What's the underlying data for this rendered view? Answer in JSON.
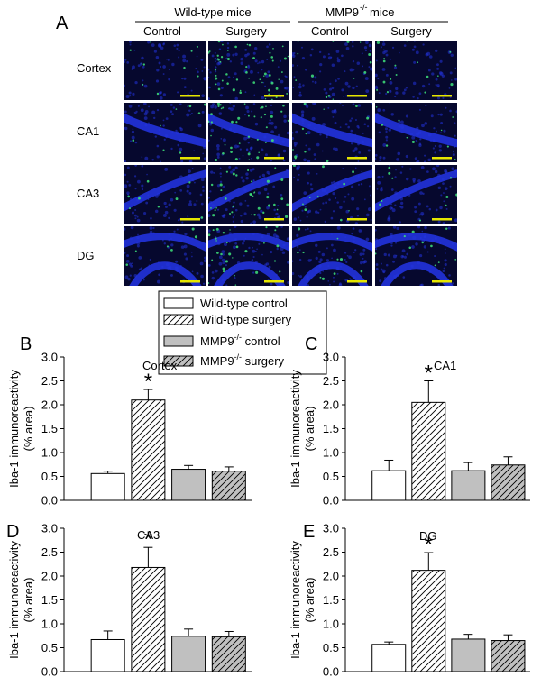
{
  "figure": {
    "panel_labels": [
      "A",
      "B",
      "C",
      "D",
      "E"
    ],
    "header": {
      "groups": [
        "Wild-type mice",
        "MMP9",
        "-/-",
        " mice"
      ],
      "columns": [
        "Control",
        "Surgery",
        "Control",
        "Surgery"
      ]
    },
    "row_labels": [
      "Cortex",
      "CA1",
      "CA3",
      "DG"
    ],
    "legend": {
      "entries": [
        {
          "label": "Wild-type control",
          "pattern": "white"
        },
        {
          "label": "Wild-type surgery",
          "pattern": "hatch-white"
        },
        {
          "label_main": "MMP9",
          "label_sup": "-/-",
          "label_rest": " control",
          "pattern": "gray"
        },
        {
          "label_main": "MMP9",
          "label_sup": "-/-",
          "label_rest": " surgery",
          "pattern": "hatch-gray"
        }
      ]
    },
    "ylabel_line1": "Iba-1 immunoreactivity",
    "ylabel_line2": "(% area)",
    "significance_mark": "*",
    "colors": {
      "micrograph_bg": "#06082e",
      "nuclei_blue": "#2233dd",
      "iba1_green": "#3fe37a",
      "scale_bar": "#e6e600",
      "bar_gray": "#c0c0c0",
      "bar_white": "#ffffff"
    }
  },
  "chart_data": [
    {
      "panel": "B",
      "type": "bar",
      "title": "Cortex",
      "categories": [
        "Wild-type control",
        "Wild-type surgery",
        "MMP9-/- control",
        "MMP9-/- surgery"
      ],
      "values": [
        0.56,
        2.1,
        0.65,
        0.61
      ],
      "errors": [
        0.05,
        0.22,
        0.08,
        0.09
      ],
      "significant": [
        false,
        true,
        false,
        false
      ],
      "ylim": [
        0,
        3.0
      ],
      "yticks": [
        "0.0",
        "0.5",
        "1.0",
        "1.5",
        "2.0",
        "2.5",
        "3.0"
      ]
    },
    {
      "panel": "C",
      "type": "bar",
      "title": "CA1",
      "categories": [
        "Wild-type control",
        "Wild-type surgery",
        "MMP9-/- control",
        "MMP9-/- surgery"
      ],
      "values": [
        0.62,
        2.05,
        0.62,
        0.74
      ],
      "errors": [
        0.22,
        0.45,
        0.17,
        0.17
      ],
      "significant": [
        false,
        true,
        false,
        false
      ],
      "ylim": [
        0,
        3.0
      ],
      "yticks": [
        "0.0",
        "0.5",
        "1.0",
        "1.5",
        "2.0",
        "2.5",
        "3.0"
      ]
    },
    {
      "panel": "D",
      "type": "bar",
      "title": "CA3",
      "categories": [
        "Wild-type control",
        "Wild-type surgery",
        "MMP9-/- control",
        "MMP9-/- surgery"
      ],
      "values": [
        0.67,
        2.18,
        0.74,
        0.73
      ],
      "errors": [
        0.18,
        0.42,
        0.15,
        0.11
      ],
      "significant": [
        false,
        true,
        false,
        false
      ],
      "ylim": [
        0,
        3.0
      ],
      "yticks": [
        "0.0",
        "0.5",
        "1.0",
        "1.5",
        "2.0",
        "2.5",
        "3.0"
      ]
    },
    {
      "panel": "E",
      "type": "bar",
      "title": "DG",
      "categories": [
        "Wild-type control",
        "Wild-type surgery",
        "MMP9-/- control",
        "MMP9-/- surgery"
      ],
      "values": [
        0.57,
        2.12,
        0.68,
        0.65
      ],
      "errors": [
        0.05,
        0.37,
        0.1,
        0.12
      ],
      "significant": [
        false,
        true,
        false,
        false
      ],
      "ylim": [
        0,
        3.0
      ],
      "yticks": [
        "0.0",
        "0.5",
        "1.0",
        "1.5",
        "2.0",
        "2.5",
        "3.0"
      ]
    }
  ]
}
